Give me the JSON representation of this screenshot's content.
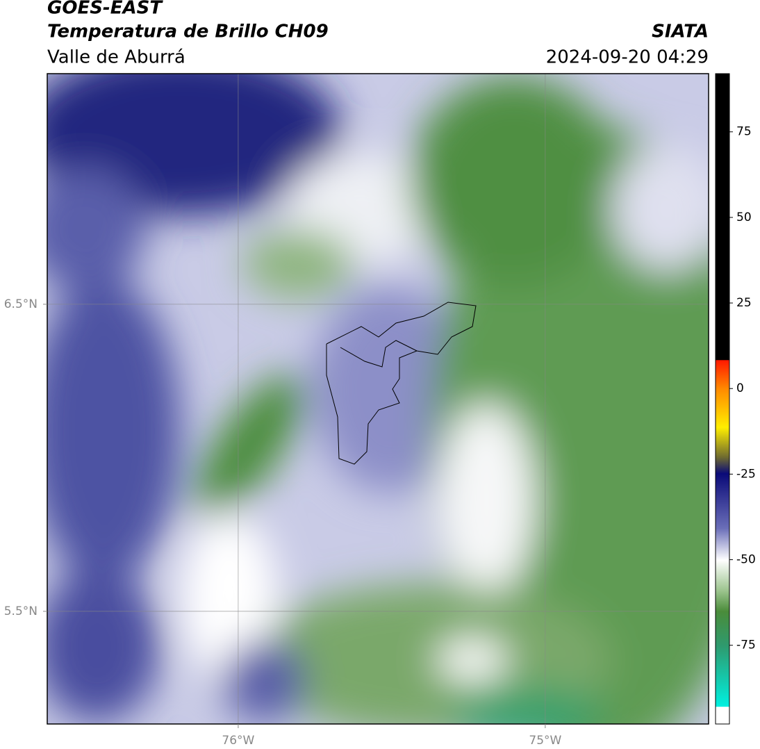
{
  "header": {
    "title": "GOES-EAST",
    "subtitle": "Temperatura de Brillo CH09",
    "region": "Valle de Aburrá",
    "source": "SIATA",
    "datetime": "2024-09-20 04:29"
  },
  "map": {
    "type": "map",
    "xlim": [
      -76.622,
      -74.468
    ],
    "ylim": [
      5.133,
      7.251
    ],
    "xticks": [
      {
        "value": -76,
        "label": "76°W"
      },
      {
        "value": -75,
        "label": "75°W"
      }
    ],
    "yticks": [
      {
        "value": 6.5,
        "label": "6.5°N"
      },
      {
        "value": 5.5,
        "label": "5.5°N"
      }
    ],
    "grid": true
  },
  "colorbar": {
    "lim": [
      -98,
      92
    ],
    "ticks": [
      75,
      50,
      25,
      0,
      -25,
      -50,
      -75
    ]
  }
}
